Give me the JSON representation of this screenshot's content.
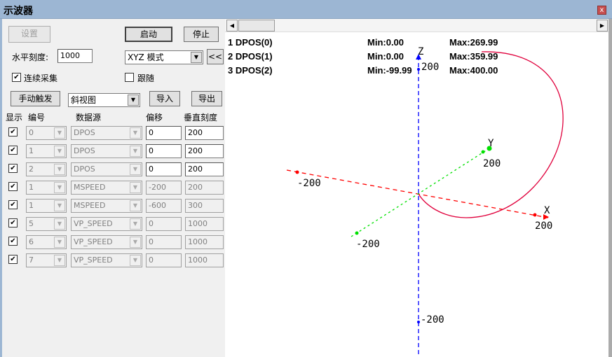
{
  "window": {
    "title": "示波器",
    "close": "x"
  },
  "controls": {
    "settings": "设置",
    "start": "启动",
    "stop": "停止",
    "h_scale_label": "水平刻度:",
    "h_scale_value": "1000",
    "mode": "XYZ 模式",
    "collapse": "<<",
    "continuous": "连续采集",
    "continuous_checked": true,
    "follow": "跟随",
    "follow_checked": false,
    "manual_trigger": "手动触发",
    "view": "斜视图",
    "import": "导入",
    "export": "导出"
  },
  "table": {
    "headers": [
      "显示",
      "编号",
      "数据源",
      "偏移",
      "垂直刻度"
    ],
    "rows": [
      {
        "show": true,
        "num": "0",
        "source": "DPOS",
        "offset": "0",
        "scale": "200",
        "enabled": true
      },
      {
        "show": true,
        "num": "1",
        "source": "DPOS",
        "offset": "0",
        "scale": "200",
        "enabled": true
      },
      {
        "show": true,
        "num": "2",
        "source": "DPOS",
        "offset": "0",
        "scale": "200",
        "enabled": true
      },
      {
        "show": true,
        "num": "1",
        "source": "MSPEED",
        "offset": "-200",
        "scale": "200",
        "enabled": false
      },
      {
        "show": true,
        "num": "1",
        "source": "MSPEED",
        "offset": "-600",
        "scale": "300",
        "enabled": false
      },
      {
        "show": true,
        "num": "5",
        "source": "VP_SPEED",
        "offset": "0",
        "scale": "1000",
        "enabled": false
      },
      {
        "show": true,
        "num": "6",
        "source": "VP_SPEED",
        "offset": "0",
        "scale": "1000",
        "enabled": false
      },
      {
        "show": true,
        "num": "7",
        "source": "VP_SPEED",
        "offset": "0",
        "scale": "1000",
        "enabled": false
      }
    ]
  },
  "legend": [
    {
      "name": "1 DPOS(0)",
      "min": "Min:0.00",
      "max": "Max:269.99"
    },
    {
      "name": "2 DPOS(1)",
      "min": "Min:0.00",
      "max": "Max:359.99"
    },
    {
      "name": "3 DPOS(2)",
      "min": "Min:-99.99",
      "max": "Max:400.00"
    }
  ],
  "plot": {
    "x_label": "X",
    "y_label": "Y",
    "z_label": "Z",
    "x_pos": "200",
    "x_neg": "-200",
    "y_pos": "200",
    "y_neg": "-200",
    "z_pos": "200",
    "z_neg": "-200",
    "colors": {
      "x_axis": "#ff0000",
      "y_axis": "#00e000",
      "z_axis": "#0000ff",
      "trace": "#e0003c"
    }
  }
}
